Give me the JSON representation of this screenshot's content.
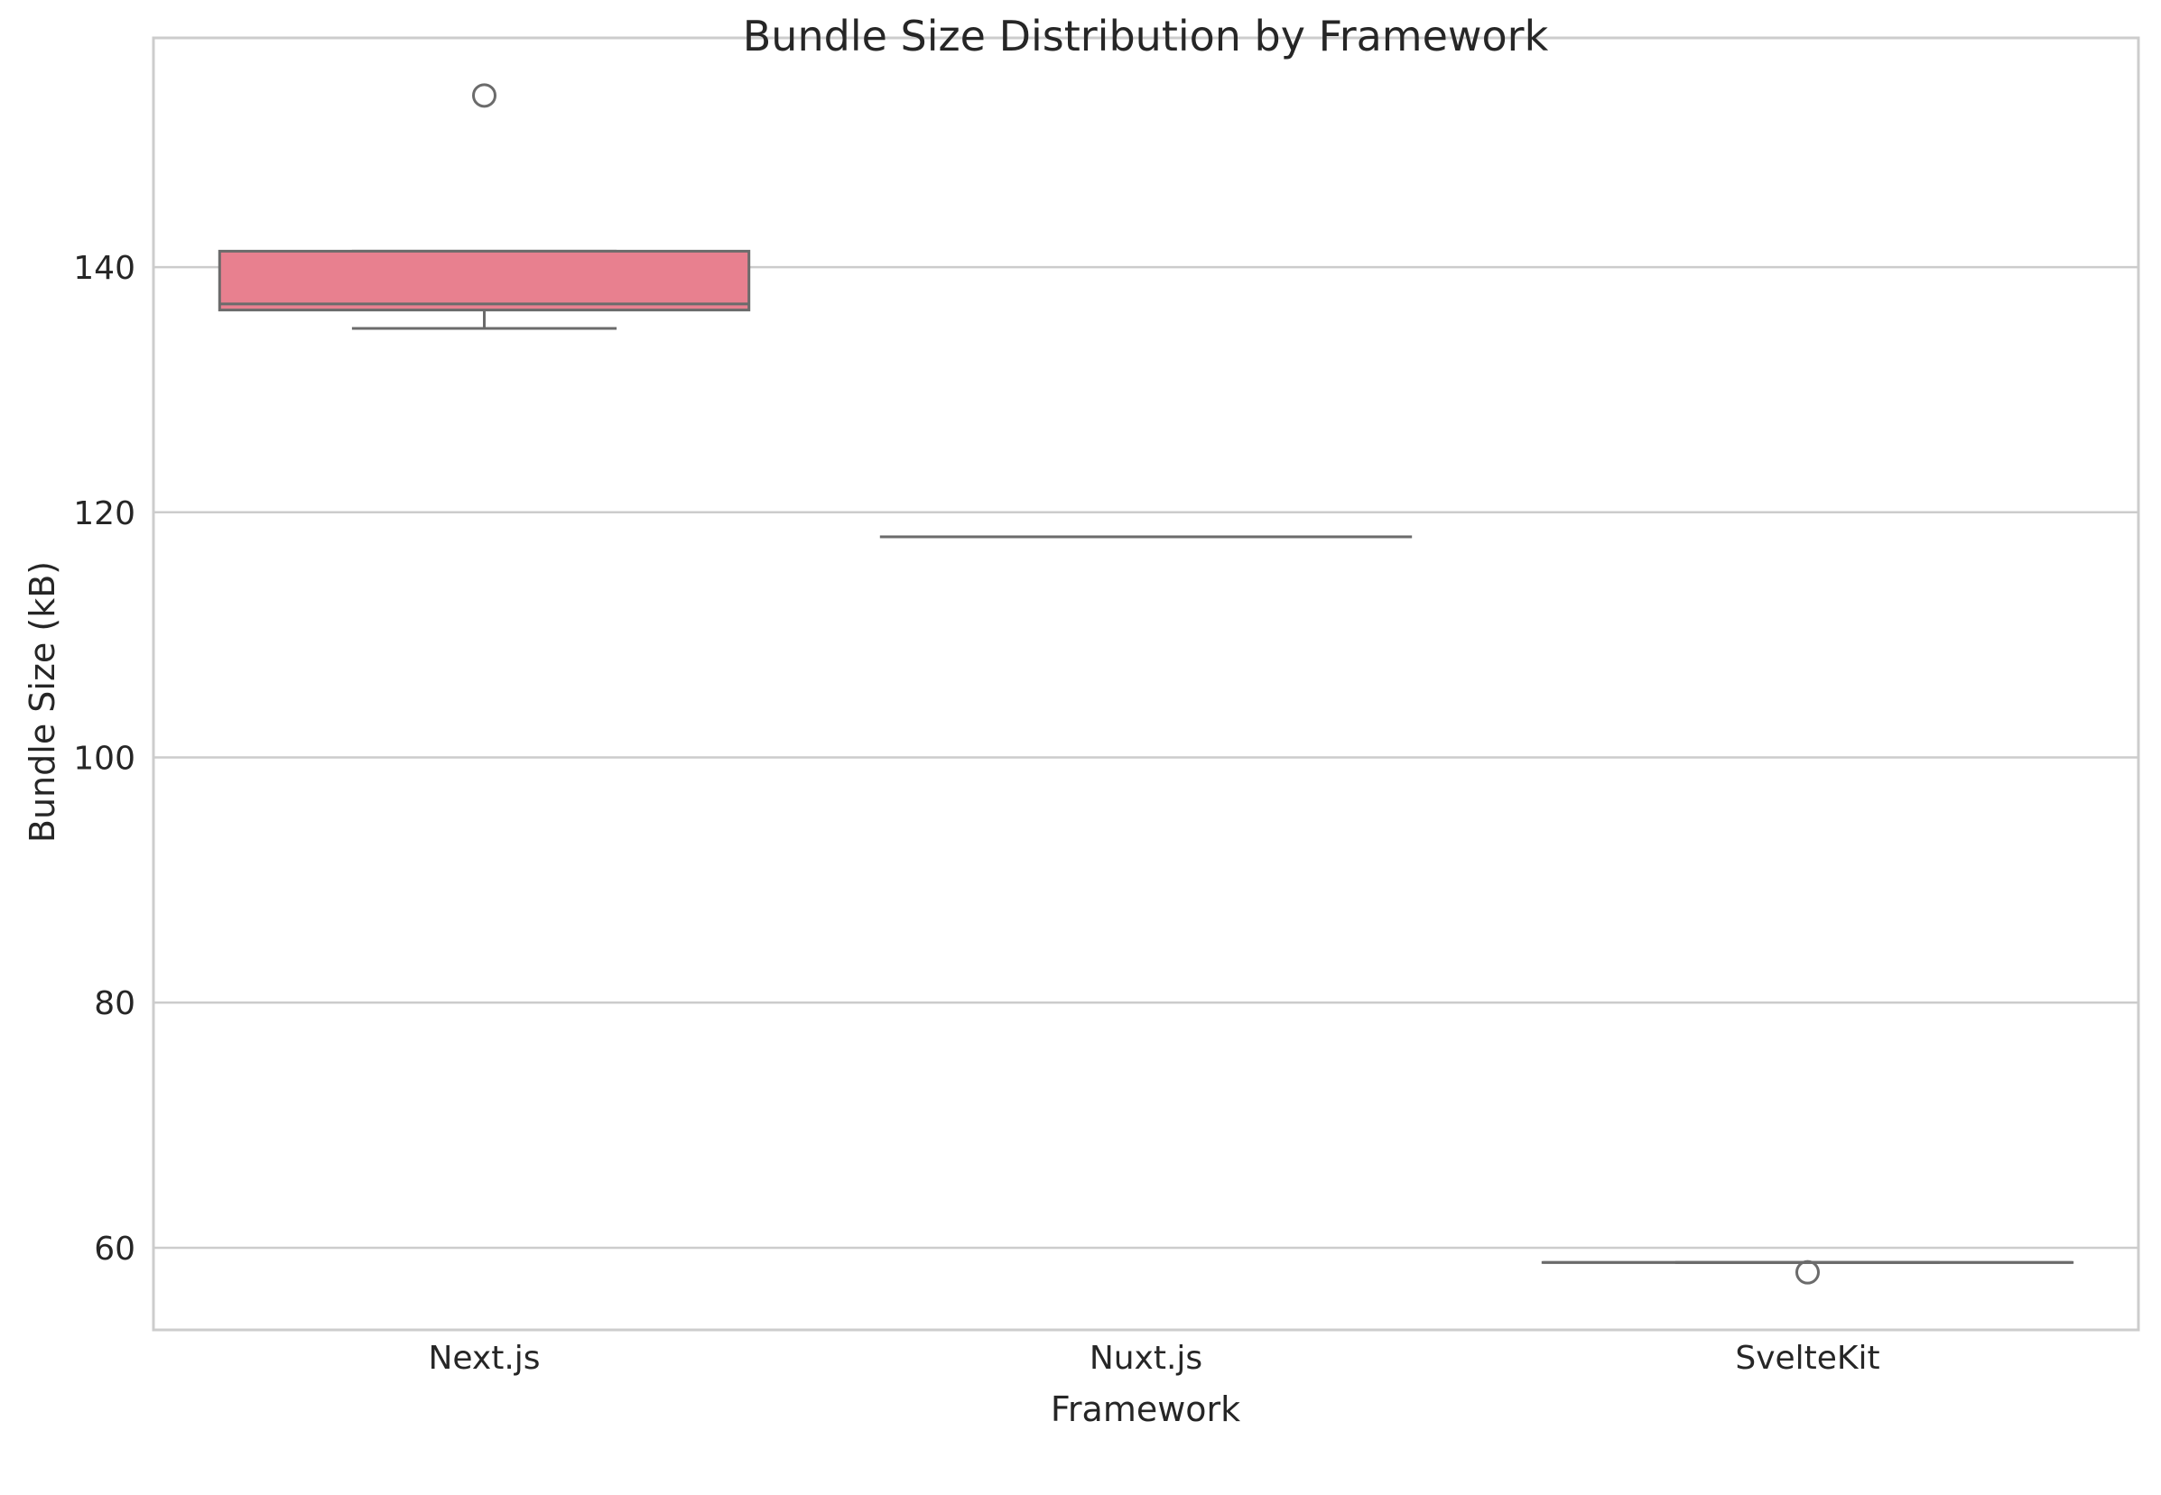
{
  "chart_data": {
    "type": "box",
    "title": "Bundle Size Distribution by Framework",
    "xlabel": "Framework",
    "ylabel": "Bundle Size (kB)",
    "ylim": [
      53.3,
      158.7
    ],
    "yticks": [
      60,
      80,
      100,
      120,
      140
    ],
    "grid": "horizontal",
    "categories": [
      "Next.js",
      "Nuxt.js",
      "SvelteKit"
    ],
    "boxes": [
      {
        "category": "Next.js",
        "whisker_low": 135,
        "q1": 136.5,
        "median": 137,
        "q3": 141.3,
        "whisker_high": 141.3,
        "outliers": [
          154
        ],
        "color": "#e8808f"
      },
      {
        "category": "Nuxt.js",
        "whisker_low": 118,
        "q1": 118,
        "median": 118,
        "q3": 118,
        "whisker_high": 118,
        "outliers": [],
        "color": "#e8808f"
      },
      {
        "category": "SvelteKit",
        "whisker_low": 58.8,
        "q1": 58.8,
        "median": 58.8,
        "q3": 58.8,
        "whisker_high": 58.8,
        "outliers": [
          58
        ],
        "color": "#e8808f"
      }
    ],
    "colors": {
      "line": "#6b6b6b",
      "grid": "#cccccc",
      "frame": "#cccccc"
    }
  }
}
